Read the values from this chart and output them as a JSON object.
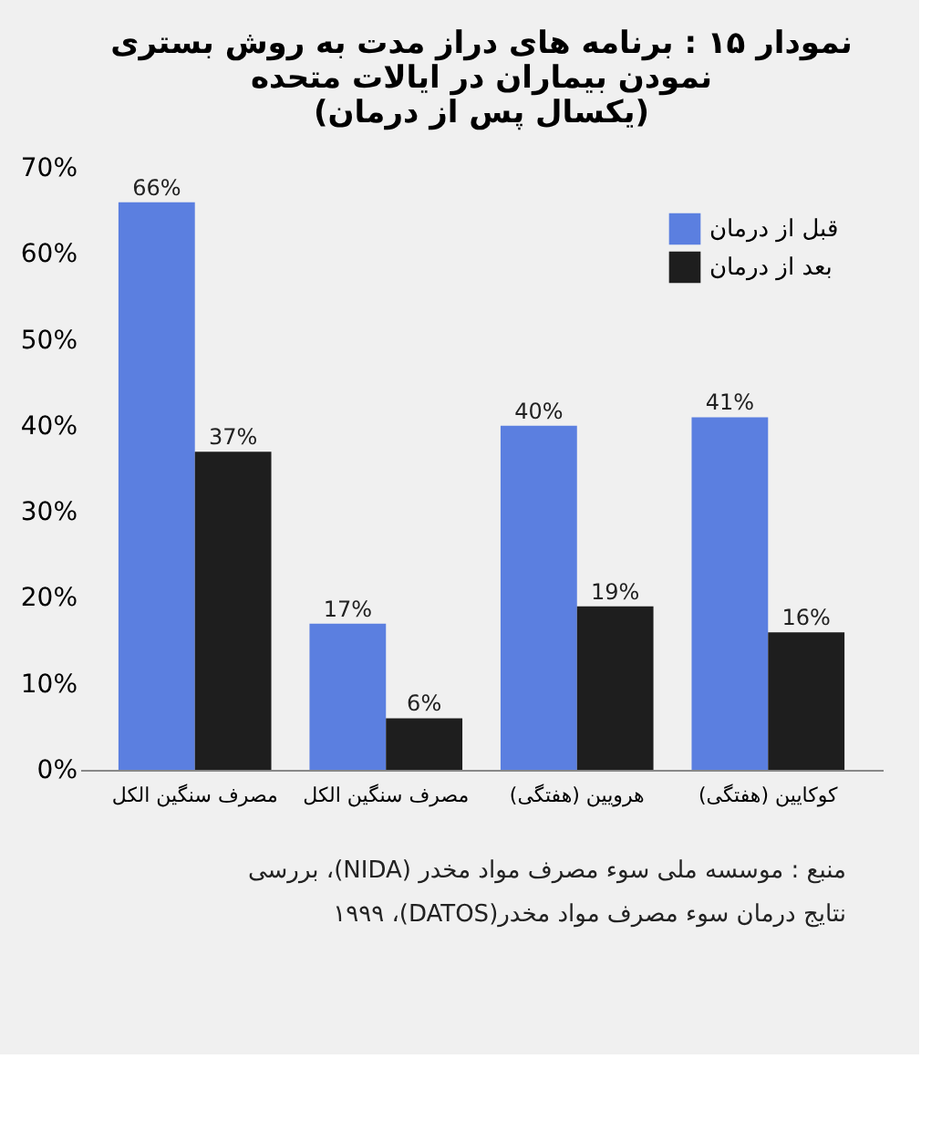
{
  "chart_data": {
    "type": "bar",
    "title": "نمودار ۱۵ : برنامه های دراز مدت به روش بستری\nنمودن بیماران در ایالات متحده\n(یکسال پس از درمان)",
    "categories": [
      "مصرف سنگین الکل",
      "مصرف سنگین الکل",
      "هرویین (هفتگی)",
      "کوکایین (هفتگی)"
    ],
    "series": [
      {
        "name": "قبل از درمان",
        "color": "#5b7fe0",
        "values": [
          66,
          17,
          40,
          41
        ],
        "value_labels": [
          "66%",
          "17%",
          "40%",
          "41%"
        ]
      },
      {
        "name": "بعد از درمان",
        "color": "#1e1e1e",
        "values": [
          37,
          6,
          19,
          16
        ],
        "value_labels": [
          "37%",
          "6%",
          "19%",
          "16%"
        ]
      }
    ],
    "ylim": [
      0,
      70
    ],
    "yticks": [
      {
        "value": 0,
        "label": "0%"
      },
      {
        "value": 10,
        "label": "10%"
      },
      {
        "value": 20,
        "label": "20%"
      },
      {
        "value": 30,
        "label": "30%"
      },
      {
        "value": 40,
        "label": "40%"
      },
      {
        "value": 50,
        "label": "50%"
      },
      {
        "value": 60,
        "label": "60%"
      },
      {
        "value": 70,
        "label": "70%"
      }
    ],
    "legend": "top right",
    "grid": false,
    "annotations": [
      "منبع : موسسه ملی سوء مصرف مواد مخدر (NIDA)، بررسی",
      "نتایج درمان سوء مصرف مواد مخدر(DATOS)، ۱۹۹۹"
    ]
  }
}
